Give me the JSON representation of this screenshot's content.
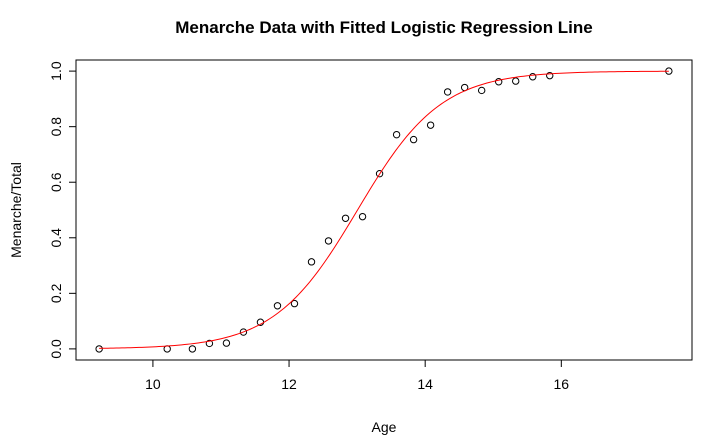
{
  "chart_data": {
    "type": "scatter",
    "title": "Menarche Data with Fitted Logistic Regression Line",
    "xlabel": "Age",
    "ylabel": "Menarche/Total",
    "xlim": [
      8.87,
      17.92
    ],
    "ylim": [
      -0.04,
      1.04
    ],
    "x_ticks": [
      10,
      12,
      14,
      16
    ],
    "y_ticks": [
      0.0,
      0.2,
      0.4,
      0.6,
      0.8,
      1.0
    ],
    "x_tick_labels": [
      "10",
      "12",
      "14",
      "16"
    ],
    "y_tick_labels": [
      "0.0",
      "0.2",
      "0.4",
      "0.6",
      "0.8",
      "1.0"
    ],
    "grid": false,
    "legend": "none",
    "points": {
      "x": [
        9.21,
        10.21,
        10.58,
        10.83,
        11.08,
        11.33,
        11.58,
        11.83,
        12.08,
        12.33,
        12.58,
        12.83,
        13.08,
        13.33,
        13.58,
        13.83,
        14.08,
        14.33,
        14.58,
        14.83,
        15.08,
        15.33,
        15.58,
        15.83,
        17.58
      ],
      "y": [
        0.0,
        0.0,
        0.0,
        0.0196,
        0.0208,
        0.0606,
        0.0959,
        0.1552,
        0.163,
        0.3133,
        0.3888,
        0.4702,
        0.4761,
        0.6307,
        0.7712,
        0.7535,
        0.8055,
        0.9251,
        0.9409,
        0.9304,
        0.9617,
        0.964,
        0.9797,
        0.9837,
        1.0
      ],
      "marker": "open-circle",
      "color": "#000000"
    },
    "fitted_line": {
      "model": "logistic",
      "intercept": -21.226,
      "slope": 1.632,
      "color": "#ff0000"
    }
  }
}
